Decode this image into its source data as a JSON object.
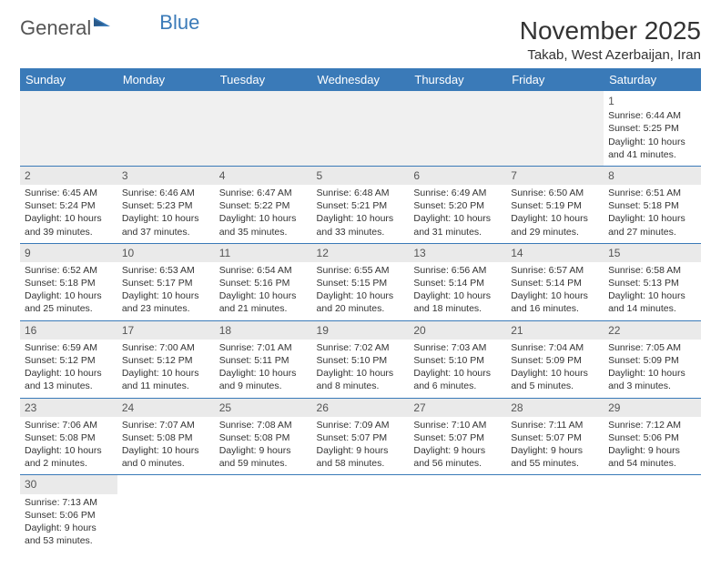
{
  "logo": {
    "part1": "General",
    "part2": "Blue"
  },
  "title": "November 2025",
  "location": "Takab, West Azerbaijan, Iran",
  "weekdays": [
    "Sunday",
    "Monday",
    "Tuesday",
    "Wednesday",
    "Thursday",
    "Friday",
    "Saturday"
  ],
  "weeks": [
    [
      null,
      null,
      null,
      null,
      null,
      null,
      {
        "n": "1",
        "sr": "Sunrise: 6:44 AM",
        "ss": "Sunset: 5:25 PM",
        "dl": "Daylight: 10 hours and 41 minutes."
      }
    ],
    [
      {
        "n": "2",
        "sr": "Sunrise: 6:45 AM",
        "ss": "Sunset: 5:24 PM",
        "dl": "Daylight: 10 hours and 39 minutes."
      },
      {
        "n": "3",
        "sr": "Sunrise: 6:46 AM",
        "ss": "Sunset: 5:23 PM",
        "dl": "Daylight: 10 hours and 37 minutes."
      },
      {
        "n": "4",
        "sr": "Sunrise: 6:47 AM",
        "ss": "Sunset: 5:22 PM",
        "dl": "Daylight: 10 hours and 35 minutes."
      },
      {
        "n": "5",
        "sr": "Sunrise: 6:48 AM",
        "ss": "Sunset: 5:21 PM",
        "dl": "Daylight: 10 hours and 33 minutes."
      },
      {
        "n": "6",
        "sr": "Sunrise: 6:49 AM",
        "ss": "Sunset: 5:20 PM",
        "dl": "Daylight: 10 hours and 31 minutes."
      },
      {
        "n": "7",
        "sr": "Sunrise: 6:50 AM",
        "ss": "Sunset: 5:19 PM",
        "dl": "Daylight: 10 hours and 29 minutes."
      },
      {
        "n": "8",
        "sr": "Sunrise: 6:51 AM",
        "ss": "Sunset: 5:18 PM",
        "dl": "Daylight: 10 hours and 27 minutes."
      }
    ],
    [
      {
        "n": "9",
        "sr": "Sunrise: 6:52 AM",
        "ss": "Sunset: 5:18 PM",
        "dl": "Daylight: 10 hours and 25 minutes."
      },
      {
        "n": "10",
        "sr": "Sunrise: 6:53 AM",
        "ss": "Sunset: 5:17 PM",
        "dl": "Daylight: 10 hours and 23 minutes."
      },
      {
        "n": "11",
        "sr": "Sunrise: 6:54 AM",
        "ss": "Sunset: 5:16 PM",
        "dl": "Daylight: 10 hours and 21 minutes."
      },
      {
        "n": "12",
        "sr": "Sunrise: 6:55 AM",
        "ss": "Sunset: 5:15 PM",
        "dl": "Daylight: 10 hours and 20 minutes."
      },
      {
        "n": "13",
        "sr": "Sunrise: 6:56 AM",
        "ss": "Sunset: 5:14 PM",
        "dl": "Daylight: 10 hours and 18 minutes."
      },
      {
        "n": "14",
        "sr": "Sunrise: 6:57 AM",
        "ss": "Sunset: 5:14 PM",
        "dl": "Daylight: 10 hours and 16 minutes."
      },
      {
        "n": "15",
        "sr": "Sunrise: 6:58 AM",
        "ss": "Sunset: 5:13 PM",
        "dl": "Daylight: 10 hours and 14 minutes."
      }
    ],
    [
      {
        "n": "16",
        "sr": "Sunrise: 6:59 AM",
        "ss": "Sunset: 5:12 PM",
        "dl": "Daylight: 10 hours and 13 minutes."
      },
      {
        "n": "17",
        "sr": "Sunrise: 7:00 AM",
        "ss": "Sunset: 5:12 PM",
        "dl": "Daylight: 10 hours and 11 minutes."
      },
      {
        "n": "18",
        "sr": "Sunrise: 7:01 AM",
        "ss": "Sunset: 5:11 PM",
        "dl": "Daylight: 10 hours and 9 minutes."
      },
      {
        "n": "19",
        "sr": "Sunrise: 7:02 AM",
        "ss": "Sunset: 5:10 PM",
        "dl": "Daylight: 10 hours and 8 minutes."
      },
      {
        "n": "20",
        "sr": "Sunrise: 7:03 AM",
        "ss": "Sunset: 5:10 PM",
        "dl": "Daylight: 10 hours and 6 minutes."
      },
      {
        "n": "21",
        "sr": "Sunrise: 7:04 AM",
        "ss": "Sunset: 5:09 PM",
        "dl": "Daylight: 10 hours and 5 minutes."
      },
      {
        "n": "22",
        "sr": "Sunrise: 7:05 AM",
        "ss": "Sunset: 5:09 PM",
        "dl": "Daylight: 10 hours and 3 minutes."
      }
    ],
    [
      {
        "n": "23",
        "sr": "Sunrise: 7:06 AM",
        "ss": "Sunset: 5:08 PM",
        "dl": "Daylight: 10 hours and 2 minutes."
      },
      {
        "n": "24",
        "sr": "Sunrise: 7:07 AM",
        "ss": "Sunset: 5:08 PM",
        "dl": "Daylight: 10 hours and 0 minutes."
      },
      {
        "n": "25",
        "sr": "Sunrise: 7:08 AM",
        "ss": "Sunset: 5:08 PM",
        "dl": "Daylight: 9 hours and 59 minutes."
      },
      {
        "n": "26",
        "sr": "Sunrise: 7:09 AM",
        "ss": "Sunset: 5:07 PM",
        "dl": "Daylight: 9 hours and 58 minutes."
      },
      {
        "n": "27",
        "sr": "Sunrise: 7:10 AM",
        "ss": "Sunset: 5:07 PM",
        "dl": "Daylight: 9 hours and 56 minutes."
      },
      {
        "n": "28",
        "sr": "Sunrise: 7:11 AM",
        "ss": "Sunset: 5:07 PM",
        "dl": "Daylight: 9 hours and 55 minutes."
      },
      {
        "n": "29",
        "sr": "Sunrise: 7:12 AM",
        "ss": "Sunset: 5:06 PM",
        "dl": "Daylight: 9 hours and 54 minutes."
      }
    ],
    [
      {
        "n": "30",
        "sr": "Sunrise: 7:13 AM",
        "ss": "Sunset: 5:06 PM",
        "dl": "Daylight: 9 hours and 53 minutes."
      },
      null,
      null,
      null,
      null,
      null,
      null
    ]
  ],
  "colors": {
    "header_bg": "#3a7ab8",
    "header_fg": "#ffffff",
    "border": "#3a7ab8",
    "shade": "#eaeaea"
  }
}
